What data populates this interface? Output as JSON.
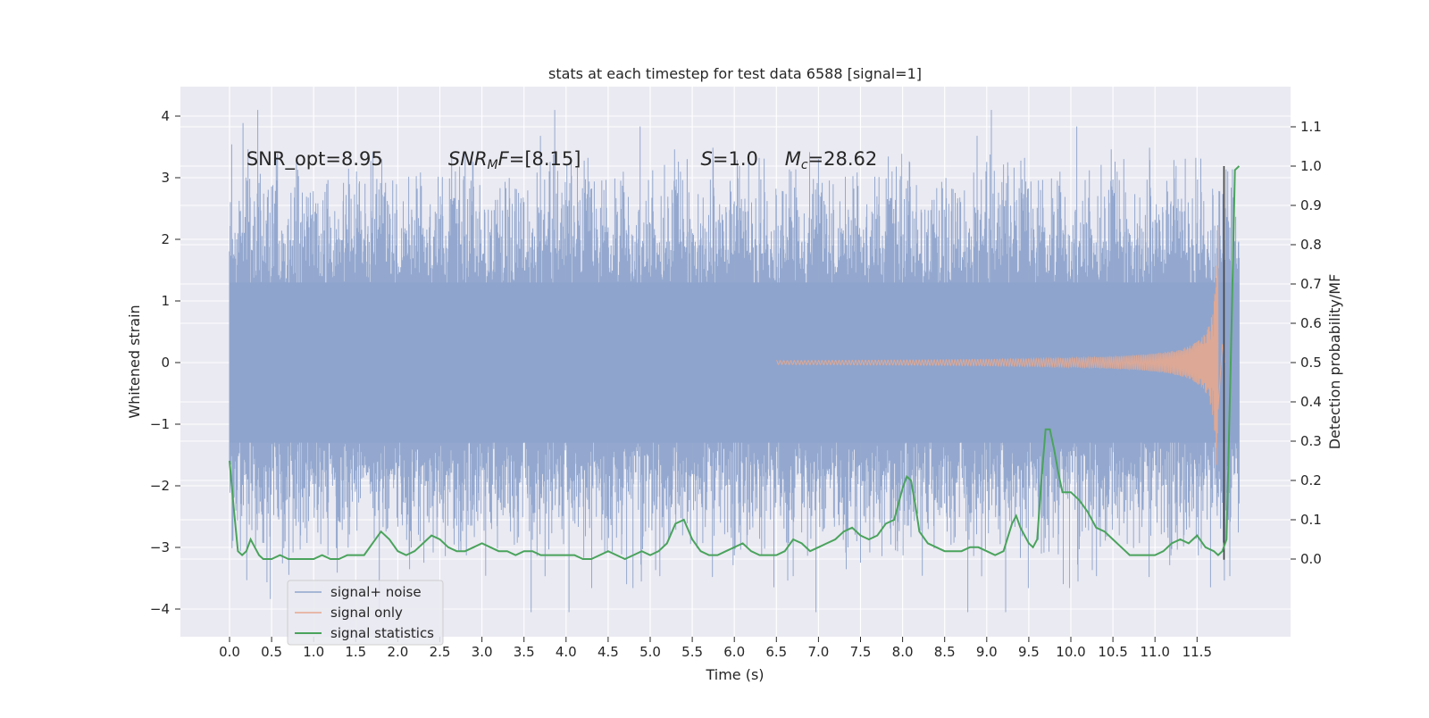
{
  "chart_data": {
    "type": "line",
    "title": "stats at each timestep for test data 6588 [signal=1]",
    "xlabel": "Time (s)",
    "ylabel": "Whitened strain",
    "ylabel_right": "Detection probability/MF",
    "xlim": [
      -0.25,
      12.25
    ],
    "ylim": [
      -4.45,
      4.45
    ],
    "ylim_right": [
      -0.21,
      1.185
    ],
    "x_ticks": [
      "0.0",
      "0.5",
      "1.0",
      "1.5",
      "2.0",
      "2.5",
      "3.0",
      "3.5",
      "4.0",
      "4.5",
      "5.0",
      "5.5",
      "6.0",
      "6.5",
      "7.0",
      "7.5",
      "8.0",
      "8.5",
      "9.0",
      "9.5",
      "10.0",
      "10.5",
      "11.0",
      "11.5"
    ],
    "y_ticks": [
      "4",
      "3",
      "2",
      "1",
      "0",
      "−1",
      "−2",
      "−3",
      "−4"
    ],
    "y_ticks_right": [
      "1.1",
      "1.0",
      "0.9",
      "0.8",
      "0.7",
      "0.6",
      "0.5",
      "0.4",
      "0.3",
      "0.2",
      "0.1",
      "0.0"
    ],
    "grid": true,
    "legend_position": "lower-left",
    "annotations": [
      {
        "text": "SNR_opt=8.95",
        "x": 0.2,
        "y": 3.2
      },
      {
        "text": "SNR_MF=[8.15]",
        "x": 2.6,
        "y": 3.2
      },
      {
        "text": "S=1.0",
        "x": 5.6,
        "y": 3.2
      },
      {
        "text": "M_c=28.62",
        "x": 6.6,
        "y": 3.2
      }
    ],
    "series": [
      {
        "name": "signal+ noise",
        "color": "#8fa4cc",
        "axis": "left",
        "description_values": {
          "x_range": [
            0.0,
            12.0
          ],
          "core_band": [
            -1.9,
            1.9
          ],
          "min": -4.05,
          "max": 4.1
        }
      },
      {
        "name": "signal only",
        "color": "#e6a88f",
        "axis": "left",
        "chirp": {
          "start": 6.5,
          "merger": 11.75,
          "peak_amplitude": 2.2
        }
      },
      {
        "name": "signal statistics",
        "color": "#4aa35c",
        "axis": "right",
        "x": [
          0.0,
          0.05,
          0.1,
          0.15,
          0.2,
          0.25,
          0.3,
          0.35,
          0.4,
          0.5,
          0.6,
          0.7,
          0.8,
          0.9,
          1.0,
          1.1,
          1.2,
          1.3,
          1.4,
          1.5,
          1.6,
          1.7,
          1.8,
          1.9,
          2.0,
          2.1,
          2.2,
          2.3,
          2.4,
          2.5,
          2.6,
          2.7,
          2.8,
          2.9,
          3.0,
          3.1,
          3.2,
          3.3,
          3.4,
          3.5,
          3.6,
          3.7,
          3.8,
          3.9,
          4.0,
          4.1,
          4.2,
          4.3,
          4.4,
          4.5,
          4.6,
          4.7,
          4.8,
          4.9,
          5.0,
          5.1,
          5.2,
          5.3,
          5.4,
          5.5,
          5.6,
          5.7,
          5.8,
          5.9,
          6.0,
          6.1,
          6.2,
          6.3,
          6.4,
          6.5,
          6.6,
          6.7,
          6.8,
          6.9,
          7.0,
          7.1,
          7.2,
          7.3,
          7.4,
          7.5,
          7.6,
          7.7,
          7.8,
          7.9,
          8.0,
          8.05,
          8.1,
          8.15,
          8.2,
          8.3,
          8.4,
          8.5,
          8.6,
          8.7,
          8.8,
          8.9,
          9.0,
          9.1,
          9.2,
          9.3,
          9.35,
          9.4,
          9.5,
          9.55,
          9.6,
          9.65,
          9.7,
          9.75,
          9.8,
          9.85,
          9.9,
          10.0,
          10.1,
          10.2,
          10.3,
          10.4,
          10.5,
          10.6,
          10.7,
          10.8,
          10.9,
          11.0,
          11.1,
          11.2,
          11.3,
          11.4,
          11.5,
          11.6,
          11.7,
          11.75,
          11.8,
          11.85,
          11.9,
          11.95,
          12.0
        ],
        "values": [
          0.25,
          0.13,
          0.02,
          0.01,
          0.02,
          0.05,
          0.03,
          0.01,
          0.0,
          0.0,
          0.01,
          0.0,
          0.0,
          0.0,
          0.0,
          0.01,
          0.0,
          0.0,
          0.01,
          0.01,
          0.01,
          0.04,
          0.07,
          0.05,
          0.02,
          0.01,
          0.02,
          0.04,
          0.06,
          0.05,
          0.03,
          0.02,
          0.02,
          0.03,
          0.04,
          0.03,
          0.02,
          0.02,
          0.01,
          0.02,
          0.02,
          0.01,
          0.01,
          0.01,
          0.01,
          0.01,
          0.0,
          0.0,
          0.01,
          0.02,
          0.01,
          0.0,
          0.01,
          0.02,
          0.01,
          0.02,
          0.04,
          0.09,
          0.1,
          0.05,
          0.02,
          0.01,
          0.01,
          0.02,
          0.03,
          0.04,
          0.02,
          0.01,
          0.01,
          0.01,
          0.02,
          0.05,
          0.04,
          0.02,
          0.03,
          0.04,
          0.05,
          0.07,
          0.08,
          0.06,
          0.05,
          0.06,
          0.09,
          0.1,
          0.18,
          0.21,
          0.2,
          0.14,
          0.07,
          0.04,
          0.03,
          0.02,
          0.02,
          0.02,
          0.03,
          0.03,
          0.02,
          0.01,
          0.02,
          0.09,
          0.11,
          0.08,
          0.04,
          0.03,
          0.05,
          0.2,
          0.33,
          0.33,
          0.28,
          0.22,
          0.17,
          0.17,
          0.15,
          0.12,
          0.08,
          0.07,
          0.05,
          0.03,
          0.01,
          0.01,
          0.01,
          0.01,
          0.02,
          0.04,
          0.05,
          0.04,
          0.06,
          0.03,
          0.02,
          0.01,
          0.02,
          0.05,
          0.5,
          0.99,
          1.0
        ]
      }
    ],
    "vertical_line": {
      "x": 11.82,
      "color": "#404040"
    }
  }
}
